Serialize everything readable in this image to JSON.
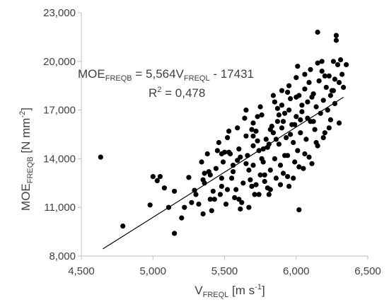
{
  "chart_data": {
    "type": "scatter",
    "title": "",
    "xlabel": {
      "main": "V",
      "sub": "FREQL",
      "unit_pre": "  [m s",
      "unit_sup": "-1",
      "unit_post": "]"
    },
    "ylabel": {
      "main": "MOE",
      "sub": "FREQB",
      "unit_pre": " [N mm",
      "unit_sup": "-2",
      "unit_post": "]"
    },
    "xlim": [
      4500,
      6500
    ],
    "ylim": [
      8000,
      23000
    ],
    "x_ticks": [
      4500,
      5000,
      5500,
      6000,
      6500
    ],
    "x_tick_labels": [
      "4,500",
      "5,000",
      "5,500",
      "6,000",
      "6,500"
    ],
    "y_ticks": [
      8000,
      11000,
      14000,
      17000,
      20000,
      23000
    ],
    "y_tick_labels": [
      "8,000",
      "11,000",
      "14,000",
      "17,000",
      "20,000",
      "23,000"
    ],
    "grid": false,
    "marker_color": "#000000",
    "trendline": {
      "slope": 5.564,
      "intercept": -17431,
      "x_range": [
        4650,
        6330
      ],
      "color": "#000000",
      "equation": {
        "lhs": "MOE",
        "lhs_sub": "FREQB",
        "mid": " = 5,564V",
        "mid_sub": "FREQL",
        "rhs": " - 17431"
      },
      "r2": {
        "pre": "R",
        "sup": "2",
        "post": " = 0,478"
      }
    },
    "points": [
      [
        4635,
        14100
      ],
      [
        4790,
        9850
      ],
      [
        4980,
        11150
      ],
      [
        5000,
        12900
      ],
      [
        5030,
        12650
      ],
      [
        5050,
        12900
      ],
      [
        5080,
        12200
      ],
      [
        5110,
        11000
      ],
      [
        5150,
        12000
      ],
      [
        5150,
        9400
      ],
      [
        5200,
        10350
      ],
      [
        5220,
        11000
      ],
      [
        5250,
        12850
      ],
      [
        5270,
        11300
      ],
      [
        5290,
        12050
      ],
      [
        5300,
        11800
      ],
      [
        5320,
        11200
      ],
      [
        5340,
        13800
      ],
      [
        5350,
        10600
      ],
      [
        5360,
        12500
      ],
      [
        5380,
        14300
      ],
      [
        5390,
        13200
      ],
      [
        5400,
        11500
      ],
      [
        5410,
        10800
      ],
      [
        5420,
        12000
      ],
      [
        5440,
        13400
      ],
      [
        5450,
        14500
      ],
      [
        5460,
        15000
      ],
      [
        5470,
        11800
      ],
      [
        5480,
        12300
      ],
      [
        5490,
        13800
      ],
      [
        5500,
        14400
      ],
      [
        5510,
        11200
      ],
      [
        5520,
        15300
      ],
      [
        5530,
        15700
      ],
      [
        5540,
        14300
      ],
      [
        5550,
        12800
      ],
      [
        5560,
        13600
      ],
      [
        5570,
        11600
      ],
      [
        5580,
        12100
      ],
      [
        5590,
        13900
      ],
      [
        5600,
        14600
      ],
      [
        5610,
        10900
      ],
      [
        5620,
        11300
      ],
      [
        5630,
        12500
      ],
      [
        5640,
        16500
      ],
      [
        5650,
        17000
      ],
      [
        5650,
        15400
      ],
      [
        5660,
        14200
      ],
      [
        5670,
        13300
      ],
      [
        5680,
        12700
      ],
      [
        5690,
        15800
      ],
      [
        5700,
        16200
      ],
      [
        5700,
        13600
      ],
      [
        5710,
        11800
      ],
      [
        5720,
        12400
      ],
      [
        5730,
        15100
      ],
      [
        5740,
        14500
      ],
      [
        5750,
        17200
      ],
      [
        5750,
        13000
      ],
      [
        5760,
        16700
      ],
      [
        5770,
        13800
      ],
      [
        5780,
        12600
      ],
      [
        5790,
        15200
      ],
      [
        5800,
        14700
      ],
      [
        5800,
        12200
      ],
      [
        5810,
        11800
      ],
      [
        5820,
        13300
      ],
      [
        5830,
        16000
      ],
      [
        5840,
        15600
      ],
      [
        5850,
        17500
      ],
      [
        5850,
        14000
      ],
      [
        5860,
        12800
      ],
      [
        5870,
        16300
      ],
      [
        5880,
        14900
      ],
      [
        5890,
        13600
      ],
      [
        5900,
        15900
      ],
      [
        5900,
        17300
      ],
      [
        5910,
        13100
      ],
      [
        5920,
        16800
      ],
      [
        5930,
        15300
      ],
      [
        5940,
        14200
      ],
      [
        5950,
        18500
      ],
      [
        5950,
        12300
      ],
      [
        5960,
        17700
      ],
      [
        5970,
        16100
      ],
      [
        5980,
        15000
      ],
      [
        5990,
        13800
      ],
      [
        6000,
        19000
      ],
      [
        6000,
        16600
      ],
      [
        6010,
        14500
      ],
      [
        6020,
        17900
      ],
      [
        6020,
        10850
      ],
      [
        6030,
        15600
      ],
      [
        6040,
        16900
      ],
      [
        6050,
        13400
      ],
      [
        6060,
        18300
      ],
      [
        6070,
        15200
      ],
      [
        6080,
        17500
      ],
      [
        6090,
        14100
      ],
      [
        6100,
        19500
      ],
      [
        6100,
        16300
      ],
      [
        6110,
        13700
      ],
      [
        6120,
        18000
      ],
      [
        6130,
        15800
      ],
      [
        6140,
        17200
      ],
      [
        6150,
        21800
      ],
      [
        6150,
        14800
      ],
      [
        6160,
        18800
      ],
      [
        6170,
        16800
      ],
      [
        6180,
        19400
      ],
      [
        6190,
        17600
      ],
      [
        6200,
        15600
      ],
      [
        6210,
        18400
      ],
      [
        6220,
        17000
      ],
      [
        6230,
        19100
      ],
      [
        6240,
        16400
      ],
      [
        6250,
        18200
      ],
      [
        6260,
        20000
      ],
      [
        6270,
        17400
      ],
      [
        6280,
        21600
      ],
      [
        6280,
        21300
      ],
      [
        6290,
        19800
      ],
      [
        6300,
        18700
      ],
      [
        6310,
        20100
      ],
      [
        6320,
        19200
      ],
      [
        6330,
        18400
      ],
      [
        6350,
        19800
      ],
      [
        6010,
        19700
      ],
      [
        5950,
        17000
      ],
      [
        5880,
        16700
      ],
      [
        5820,
        15800
      ],
      [
        5720,
        15700
      ],
      [
        5610,
        14100
      ],
      [
        5560,
        13200
      ],
      [
        5480,
        12800
      ],
      [
        5700,
        15400
      ],
      [
        5940,
        18100
      ],
      [
        6080,
        16500
      ],
      [
        6190,
        15300
      ],
      [
        6240,
        17900
      ],
      [
        6060,
        19200
      ],
      [
        5860,
        15200
      ],
      [
        5760,
        14000
      ],
      [
        5690,
        12300
      ],
      [
        5530,
        14400
      ],
      [
        5360,
        13100
      ],
      [
        5430,
        11500
      ],
      [
        5600,
        11500
      ],
      [
        5670,
        11000
      ],
      [
        5780,
        13000
      ],
      [
        5920,
        14200
      ],
      [
        6040,
        17300
      ],
      [
        6120,
        16300
      ],
      [
        6200,
        19100
      ],
      [
        6260,
        18200
      ],
      [
        5990,
        16100
      ],
      [
        5840,
        17900
      ],
      [
        5730,
        16600
      ],
      [
        5650,
        13700
      ],
      [
        5520,
        12100
      ],
      [
        5400,
        13000
      ],
      [
        5980,
        12800
      ],
      [
        6060,
        14300
      ],
      [
        5890,
        12400
      ],
      [
        5770,
        14600
      ],
      [
        6110,
        17800
      ],
      [
        6230,
        15900
      ],
      [
        6150,
        19900
      ],
      [
        5910,
        16300
      ],
      [
        5810,
        14900
      ],
      [
        5960,
        15500
      ],
      [
        6020,
        13500
      ],
      [
        5700,
        14800
      ],
      [
        5590,
        15900
      ],
      [
        5480,
        14300
      ],
      [
        5350,
        12700
      ],
      [
        6270,
        18900
      ],
      [
        6180,
        20000
      ],
      [
        6090,
        18700
      ],
      [
        6030,
        16400
      ],
      [
        5870,
        17100
      ],
      [
        5940,
        12900
      ],
      [
        5820,
        12100
      ],
      [
        5740,
        11800
      ],
      [
        6140,
        15000
      ],
      [
        6000,
        17800
      ],
      [
        5900,
        18200
      ],
      [
        6300,
        16200
      ]
    ]
  }
}
